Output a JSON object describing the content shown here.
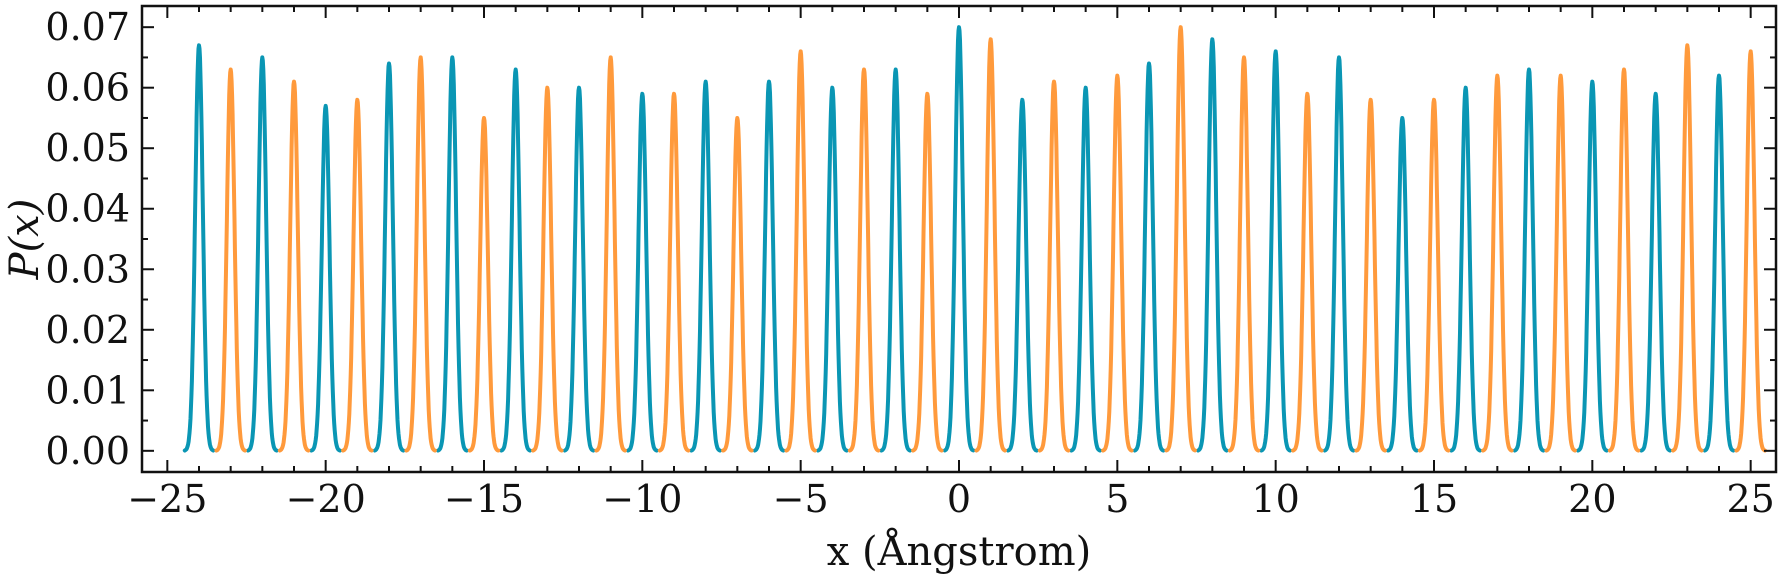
{
  "chart_data": {
    "type": "line",
    "title": "",
    "xlabel": "x (Ångstrom)",
    "ylabel": "P(x)",
    "xlim": [
      -25.8,
      25.8
    ],
    "ylim": [
      -0.0035,
      0.0735
    ],
    "x_ticks": [
      -25,
      -20,
      -15,
      -10,
      -5,
      0,
      5,
      10,
      15,
      20,
      25
    ],
    "x_tick_labels": [
      "−25",
      "−20",
      "−15",
      "−10",
      "−5",
      "0",
      "5",
      "10",
      "15",
      "20",
      "25"
    ],
    "y_ticks": [
      0.0,
      0.01,
      0.02,
      0.03,
      0.04,
      0.05,
      0.06,
      0.07
    ],
    "y_tick_labels": [
      "0.00",
      "0.01",
      "0.02",
      "0.03",
      "0.04",
      "0.05",
      "0.06",
      "0.07"
    ],
    "grid": false,
    "colors": {
      "teal": "#0a96b4",
      "orange": "#ff9a3c",
      "axis": "#111111"
    },
    "series": [
      {
        "color": "#0a96b4",
        "peaks_x": [
          -24,
          -22,
          -20,
          -18,
          -16,
          -14,
          -12,
          -10,
          -8,
          -6,
          -4,
          -2,
          0,
          2,
          4,
          6,
          8,
          10,
          12,
          14,
          16,
          18,
          20,
          22,
          24
        ],
        "peaks_y": [
          0.067,
          0.065,
          0.057,
          0.064,
          0.065,
          0.063,
          0.06,
          0.059,
          0.061,
          0.061,
          0.06,
          0.063,
          0.07,
          0.058,
          0.06,
          0.064,
          0.068,
          0.066,
          0.065,
          0.055,
          0.06,
          0.063,
          0.061,
          0.059,
          0.062
        ]
      },
      {
        "color": "#ff9a3c",
        "peaks_x": [
          -23,
          -21,
          -19,
          -17,
          -15,
          -13,
          -11,
          -9,
          -7,
          -5,
          -3,
          -1,
          1,
          3,
          5,
          7,
          9,
          11,
          13,
          15,
          17,
          19,
          21,
          23,
          25
        ],
        "peaks_y": [
          0.063,
          0.061,
          0.058,
          0.065,
          0.055,
          0.06,
          0.065,
          0.059,
          0.055,
          0.066,
          0.063,
          0.059,
          0.068,
          0.061,
          0.062,
          0.07,
          0.065,
          0.059,
          0.058,
          0.058,
          0.062,
          0.062,
          0.063,
          0.067,
          0.066
        ]
      }
    ],
    "peak_width_sigma": 0.12
  }
}
